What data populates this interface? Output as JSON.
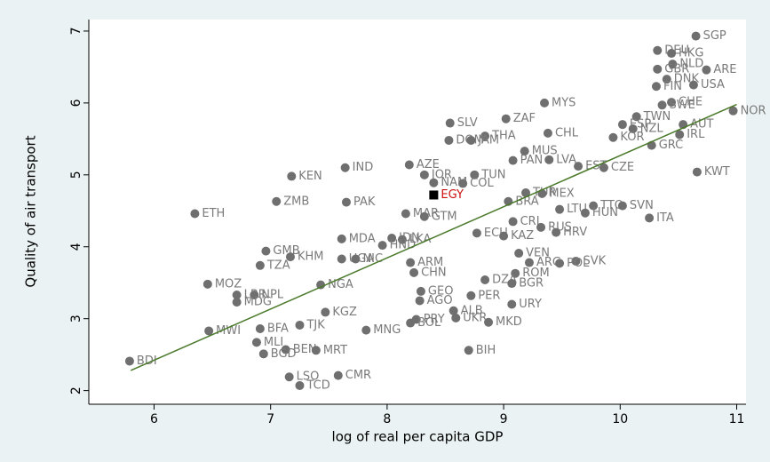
{
  "chart_data": {
    "type": "scatter",
    "x_label": "log of real per capita GDP",
    "y_label": "Quality of air transport",
    "xlim": [
      5.44,
      11.08
    ],
    "ylim": [
      1.81,
      7.16
    ],
    "xticks": [
      6,
      7,
      8,
      9,
      10,
      11
    ],
    "yticks": [
      2,
      3,
      4,
      5,
      6,
      7
    ],
    "color": "#6f6f6f",
    "labels": [
      "SGP",
      "DEU",
      "HKG",
      "NLD",
      "ARE",
      "GBR",
      "DNK",
      "FIN",
      "USA",
      "CHE",
      "SWE",
      "NOR",
      "MYS",
      "TWN",
      "ESP",
      "AUT",
      "NZL",
      "IRL",
      "KOR",
      "GRC",
      "ZAF",
      "SLV",
      "CHL",
      "THA",
      "DOM",
      "JAM",
      "MUS",
      "PAN",
      "LVA",
      "EST",
      "CZE",
      "KWT",
      "AZE",
      "JOR",
      "TUN",
      "NAM",
      "COL",
      "IND",
      "KEN",
      "ZMB",
      "PAK",
      "ETH",
      "BRA",
      "TUR",
      "MEX",
      "LTU",
      "TTO",
      "SVN",
      "HUN",
      "ITA",
      "MAR",
      "GTM",
      "CRI",
      "RUS",
      "HRV",
      "ECU",
      "KAZ",
      "MDA",
      "IDN",
      "LKA",
      "HND",
      "GMB",
      "KHM",
      "TZA",
      "UGA",
      "NIC",
      "VEN",
      "ARG",
      "SVK",
      "POL",
      "ARM",
      "CHN",
      "ROM",
      "DZA",
      "BGR",
      "MOZ",
      "LBR",
      "NPL",
      "MDG",
      "NGA",
      "GEO",
      "PER",
      "AGO",
      "URY",
      "KGZ",
      "ALB",
      "UKR",
      "MKD",
      "PRY",
      "BOL",
      "TJK",
      "BFA",
      "MWI",
      "MNG",
      "MLI",
      "BEN",
      "MRT",
      "BGD",
      "BIH",
      "BDI",
      "LSO",
      "CMR",
      "TCD"
    ],
    "x": [
      10.65,
      10.32,
      10.44,
      10.45,
      10.74,
      10.32,
      10.4,
      10.31,
      10.63,
      10.44,
      10.36,
      10.97,
      9.35,
      10.14,
      10.02,
      10.54,
      10.11,
      10.51,
      9.94,
      10.27,
      9.02,
      8.54,
      9.38,
      8.84,
      8.53,
      8.72,
      9.18,
      9.08,
      9.39,
      9.64,
      9.86,
      10.66,
      8.19,
      8.32,
      8.75,
      8.4,
      8.65,
      7.64,
      7.18,
      7.05,
      7.65,
      6.35,
      9.04,
      9.19,
      9.33,
      9.48,
      9.77,
      10.02,
      9.7,
      10.25,
      8.16,
      8.32,
      9.08,
      9.32,
      9.45,
      8.77,
      9.0,
      7.61,
      8.04,
      8.13,
      7.96,
      6.96,
      7.17,
      6.91,
      7.61,
      7.73,
      9.13,
      9.22,
      9.62,
      9.48,
      8.2,
      8.23,
      9.1,
      8.84,
      9.07,
      6.46,
      6.71,
      6.86,
      6.71,
      7.43,
      8.29,
      8.72,
      8.28,
      9.07,
      7.47,
      8.57,
      8.59,
      8.87,
      8.25,
      8.2,
      7.25,
      6.91,
      6.47,
      7.82,
      6.88,
      7.13,
      7.39,
      6.94,
      8.7,
      5.79,
      7.16,
      7.58,
      7.25
    ],
    "y": [
      6.93,
      6.73,
      6.69,
      6.54,
      6.46,
      6.47,
      6.33,
      6.23,
      6.25,
      6.01,
      5.97,
      5.89,
      6.0,
      5.81,
      5.7,
      5.7,
      5.64,
      5.56,
      5.52,
      5.41,
      5.78,
      5.72,
      5.58,
      5.54,
      5.48,
      5.48,
      5.33,
      5.2,
      5.21,
      5.12,
      5.1,
      5.04,
      5.14,
      5.0,
      5.0,
      4.89,
      4.88,
      5.1,
      4.98,
      4.63,
      4.62,
      4.46,
      4.63,
      4.75,
      4.74,
      4.52,
      4.57,
      4.57,
      4.47,
      4.4,
      4.46,
      4.42,
      4.35,
      4.27,
      4.2,
      4.19,
      4.15,
      4.11,
      4.12,
      4.1,
      4.02,
      3.94,
      3.86,
      3.74,
      3.83,
      3.83,
      3.91,
      3.78,
      3.8,
      3.77,
      3.78,
      3.64,
      3.63,
      3.54,
      3.49,
      3.48,
      3.33,
      3.33,
      3.23,
      3.47,
      3.38,
      3.32,
      3.25,
      3.2,
      3.09,
      3.11,
      3.01,
      2.95,
      2.99,
      2.94,
      2.91,
      2.86,
      2.83,
      2.84,
      2.67,
      2.57,
      2.56,
      2.51,
      2.56,
      2.41,
      2.19,
      2.21,
      2.07
    ],
    "highlight": {
      "label": "EGY",
      "x": 8.4,
      "y": 4.72,
      "color": "#000000",
      "label_color": "#cc1111"
    },
    "fit_line": {
      "x": [
        5.8,
        11.0
      ],
      "y": [
        2.28,
        5.98
      ],
      "color": "#4a7a2a"
    }
  }
}
